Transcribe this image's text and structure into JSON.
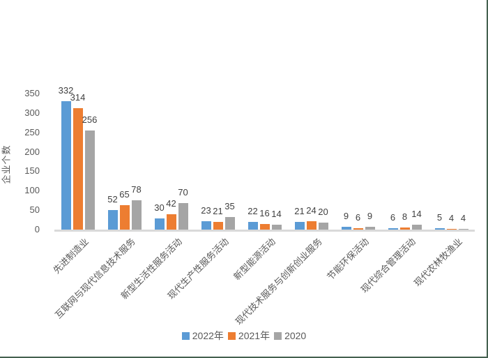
{
  "chart_data": {
    "type": "bar",
    "title": "",
    "ylabel": "企业个数",
    "xlabel": "",
    "categories": [
      "先进制造业",
      "互联网与现代信息技术服务",
      "新型生活性服务活动",
      "现代生产性服务活动",
      "新型能源活动",
      "现代技术服务与创新创业服务",
      "节能环保活动",
      "现代综合管理活动",
      "现代农林牧渔业"
    ],
    "series": [
      {
        "name": "2022年",
        "color": "#5B9BD5",
        "values": [
          332,
          52,
          30,
          23,
          22,
          21,
          9,
          6,
          5
        ]
      },
      {
        "name": "2021年",
        "color": "#ED7D31",
        "values": [
          314,
          65,
          42,
          21,
          16,
          24,
          6,
          8,
          4
        ]
      },
      {
        "name": "2020",
        "color": "#A5A5A5",
        "values": [
          256,
          78,
          70,
          35,
          14,
          20,
          9,
          14,
          4
        ]
      }
    ],
    "ylim": [
      0,
      350
    ],
    "yticks": [
      0,
      50,
      100,
      150,
      200,
      250,
      300,
      350
    ],
    "grid": false,
    "legend_position": "bottom",
    "data_labels": true
  },
  "style": {
    "axis_line_color": "#D9D9D9",
    "tick_text_color": "#595959",
    "value_label_color": "#404040",
    "category_text_color": "#595959",
    "legend_text_color": "#595959",
    "frame_border_color": "#44604F",
    "background_color": "#FFFFFF"
  }
}
